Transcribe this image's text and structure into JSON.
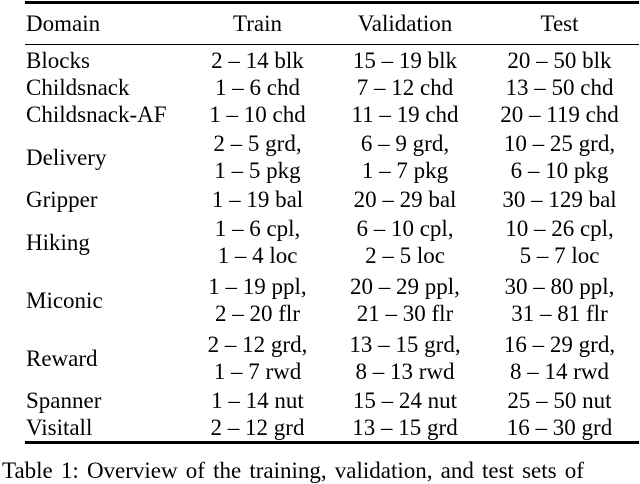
{
  "page": {
    "background_color": "#ffffff",
    "text_color": "#000000",
    "rule_color": "#000000"
  },
  "table": {
    "columns": [
      "Domain",
      "Train",
      "Validation",
      "Test"
    ],
    "rows": [
      {
        "domain": "Blocks",
        "train": "2 – 14 blk",
        "validation": "15 – 19 blk",
        "test": "20 – 50 blk"
      },
      {
        "domain": "Childsnack",
        "train": "1 – 6 chd",
        "validation": "7 – 12 chd",
        "test": "13 – 50 chd"
      },
      {
        "domain": "Childsnack-AF",
        "train": "1 – 10 chd",
        "validation": "11 – 19 chd",
        "test": "20 – 119 chd"
      },
      {
        "domain": "Delivery",
        "train": "2 – 5 grd,\n1 – 5 pkg",
        "validation": "6 – 9 grd,\n1 – 7 pkg",
        "test": "10 – 25 grd,\n6 – 10 pkg"
      },
      {
        "domain": "Gripper",
        "train": "1 – 19 bal",
        "validation": "20 – 29 bal",
        "test": "30 – 129 bal"
      },
      {
        "domain": "Hiking",
        "train": "1 – 6 cpl,\n1 – 4 loc",
        "validation": "6 – 10 cpl,\n2 – 5 loc",
        "test": "10 – 26 cpl,\n5 – 7 loc"
      },
      {
        "domain": "Miconic",
        "train": "1 – 19 ppl,\n2 – 20 flr",
        "validation": "20 – 29 ppl,\n21 – 30 flr",
        "test": "30 – 80 ppl,\n31 – 81 flr"
      },
      {
        "domain": "Reward",
        "train": "2 – 12 grd,\n1 – 7 rwd",
        "validation": "13 – 15 grd,\n8 – 13 rwd",
        "test": "16 – 29 grd,\n8 – 14 rwd"
      },
      {
        "domain": "Spanner",
        "train": "1 – 14 nut",
        "validation": "15 – 24 nut",
        "test": "25 – 50 nut"
      },
      {
        "domain": "Visitall",
        "train": "2 – 12 grd",
        "validation": "13 – 15 grd",
        "test": "16 – 30 grd"
      }
    ]
  },
  "caption": "Table 1: Overview of the training, validation, and test sets of"
}
